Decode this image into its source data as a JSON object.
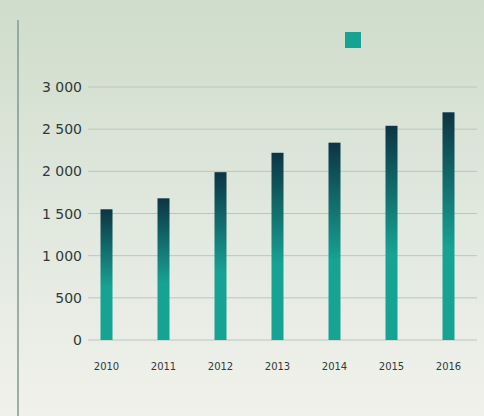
{
  "chart_data": {
    "type": "bar",
    "categories": [
      "2010",
      "2011",
      "2012",
      "2013",
      "2014",
      "2015",
      "2016"
    ],
    "values": [
      1550,
      1680,
      1990,
      2220,
      2340,
      2540,
      2700
    ],
    "color": "#17a394",
    "ylim": [
      0,
      3000
    ],
    "yticks": [
      {
        "value": 0,
        "label": "0"
      },
      {
        "value": 500,
        "label": "500"
      },
      {
        "value": 1000,
        "label": "1 000"
      },
      {
        "value": 1500,
        "label": "1 500"
      },
      {
        "value": 2000,
        "label": "2 000"
      },
      {
        "value": 2500,
        "label": "2 500"
      },
      {
        "value": 3000,
        "label": "3 000"
      }
    ],
    "grid": true
  }
}
